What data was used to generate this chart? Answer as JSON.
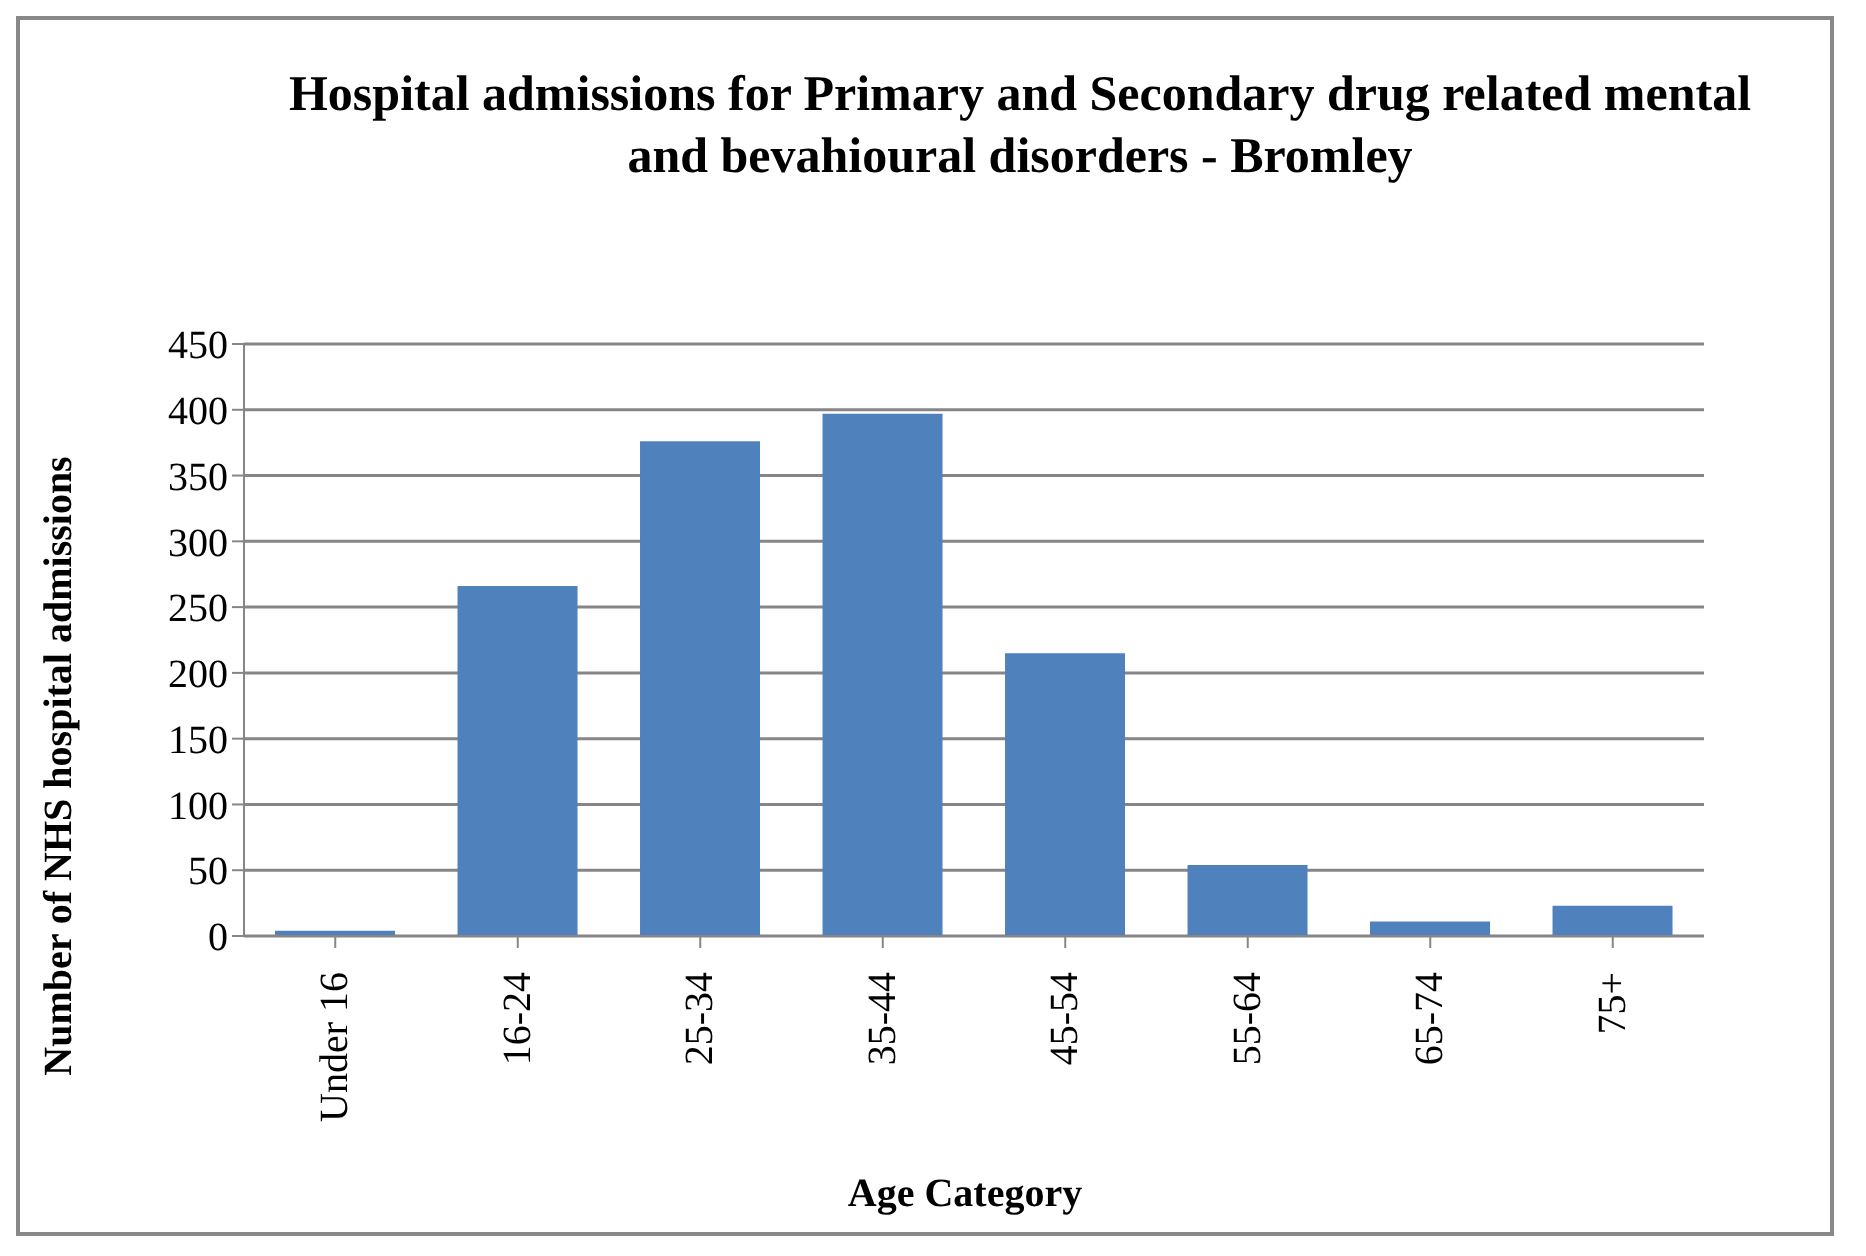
{
  "chart_data": {
    "type": "bar",
    "title": "Hospital admissions for Primary and Secondary drug related mental and bevahioural disorders - Bromley",
    "xlabel": "Age Category",
    "ylabel": "Number of NHS hospital admissions",
    "categories": [
      "Under 16",
      "16-24",
      "25-34",
      "35-44",
      "45-54",
      "55-64",
      "65-74",
      "75+"
    ],
    "values": [
      4,
      266,
      376,
      397,
      215,
      54,
      11,
      23
    ],
    "color": "#4f81bd",
    "ylim": [
      0,
      450
    ],
    "yticks": [
      0,
      50,
      100,
      150,
      200,
      250,
      300,
      350,
      400,
      450
    ],
    "grid": "y"
  }
}
